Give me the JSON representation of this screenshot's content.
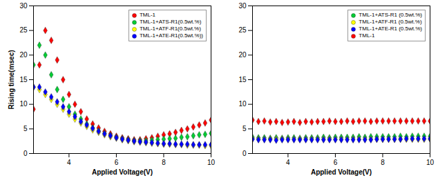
{
  "chart_data": [
    {
      "type": "scatter",
      "x_label": "Applied Voltage(V)",
      "y_label": "Rising time(msec)",
      "x": [
        2.5,
        2.75,
        3.0,
        3.25,
        3.5,
        3.75,
        4.0,
        4.25,
        4.5,
        4.75,
        5.0,
        5.25,
        5.5,
        5.75,
        6.0,
        6.25,
        6.5,
        6.75,
        7.0,
        7.25,
        7.5,
        7.75,
        8.0,
        8.25,
        8.5,
        8.75,
        9.0,
        9.25,
        9.5,
        9.75,
        10.0
      ],
      "xlim": [
        2.5,
        10
      ],
      "xticks": [
        4,
        6,
        8,
        10
      ],
      "ylim": [
        0,
        30
      ],
      "yticks": [
        0,
        5,
        10,
        15,
        20,
        25,
        30
      ],
      "grid": false,
      "legend": "top-right",
      "marker": "diamond",
      "series": [
        {
          "name": "TML-1",
          "color": "#ff0000",
          "values": [
            9,
            18,
            25,
            23,
            19,
            15,
            12,
            10,
            8.5,
            7,
            6,
            5.2,
            4.5,
            4,
            3.5,
            3.2,
            3,
            2.8,
            2.8,
            3,
            3.2,
            3.5,
            3.8,
            4,
            4.3,
            4.7,
            5,
            5.4,
            5.8,
            6.2,
            6.8
          ]
        },
        {
          "name": "TML-1+ATS-R1(0.5wt.%)",
          "color": "#00cc33",
          "values": [
            18,
            22,
            20,
            16,
            13,
            11,
            9.5,
            8,
            7,
            6,
            5.2,
            4.6,
            4.1,
            3.7,
            3.3,
            3,
            2.8,
            2.6,
            2.6,
            2.6,
            2.7,
            2.8,
            2.9,
            3,
            3.1,
            3.3,
            3.4,
            3.6,
            3.8,
            3.9,
            4.1
          ]
        },
        {
          "name": "TML-1+ATF-R1(0.5wt.%)",
          "color": "#ffff00",
          "values": [
            13.5,
            13,
            12,
            11,
            10,
            9,
            8,
            7,
            6.2,
            5.5,
            4.8,
            4.3,
            3.8,
            3.4,
            3.1,
            2.8,
            2.6,
            2.4,
            2.3,
            2.2,
            2.1,
            2,
            1.9,
            1.9,
            1.8,
            1.8,
            1.7,
            1.7,
            1.7,
            1.6,
            1.6
          ]
        },
        {
          "name": "TML-1+ATE-R1(0.5wt.%))",
          "color": "#0000ff",
          "values": [
            13.5,
            13.5,
            12.5,
            11.5,
            10.5,
            9.5,
            8.5,
            7.5,
            6.5,
            5.8,
            5.1,
            4.5,
            4,
            3.6,
            3.2,
            2.9,
            2.7,
            2.5,
            2.4,
            2.3,
            2.2,
            2.1,
            2,
            2,
            1.9,
            1.9,
            1.9,
            1.8,
            1.8,
            1.8,
            1.8
          ]
        }
      ]
    },
    {
      "type": "scatter",
      "x_label": "Applied Voltage(V)",
      "x": [
        2.5,
        2.75,
        3.0,
        3.25,
        3.5,
        3.75,
        4.0,
        4.25,
        4.5,
        4.75,
        5.0,
        5.25,
        5.5,
        5.75,
        6.0,
        6.25,
        6.5,
        6.75,
        7.0,
        7.25,
        7.5,
        7.75,
        8.0,
        8.25,
        8.5,
        8.75,
        9.0,
        9.25,
        9.5,
        9.75,
        10.0
      ],
      "xlim": [
        2.5,
        10
      ],
      "xticks": [
        4,
        6,
        8,
        10
      ],
      "ylim": [
        0,
        30
      ],
      "yticks": [
        0,
        5,
        10,
        15,
        20,
        25,
        30
      ],
      "grid": false,
      "legend": "top-right",
      "marker": "diamond",
      "series": [
        {
          "name": "TML-1+ATS-R1 (0.5wt.%)",
          "color": "#00cc33",
          "values": [
            3.3,
            3.2,
            3.2,
            3.1,
            3.2,
            3.1,
            3.2,
            3.2,
            3.1,
            3.2,
            3.2,
            3.2,
            3.3,
            3.2,
            3.3,
            3.3,
            3.3,
            3.3,
            3.4,
            3.3,
            3.4,
            3.4,
            3.4,
            3.4,
            3.4,
            3.5,
            3.4,
            3.5,
            3.5,
            3.5,
            3.5
          ]
        },
        {
          "name": "TML-1+ATF-R1 (0.5wt.%)",
          "color": "#ffff00",
          "values": [
            3,
            2.9,
            2.9,
            2.9,
            2.9,
            2.9,
            2.9,
            2.9,
            2.9,
            2.9,
            2.9,
            2.9,
            2.9,
            2.9,
            2.9,
            2.9,
            2.9,
            2.9,
            2.9,
            2.9,
            2.9,
            2.9,
            2.9,
            2.9,
            2.9,
            2.9,
            2.9,
            2.9,
            2.9,
            2.9,
            2.9
          ]
        },
        {
          "name": "TML-1+ATE-R1 (0.5wt.%)",
          "color": "#0000ff",
          "values": [
            2.9,
            2.8,
            2.8,
            2.8,
            2.7,
            2.8,
            2.8,
            2.8,
            2.8,
            2.8,
            2.8,
            2.8,
            2.8,
            2.8,
            2.8,
            2.8,
            2.8,
            2.8,
            2.8,
            2.8,
            2.8,
            2.9,
            2.9,
            2.9,
            2.9,
            2.9,
            3,
            3,
            3,
            3,
            3
          ]
        },
        {
          "name": "TML-1",
          "color": "#ff0000",
          "values": [
            6.8,
            6.5,
            6.6,
            6.4,
            6.5,
            6.3,
            6.4,
            6.5,
            6.3,
            6.5,
            6.4,
            6.5,
            6.5,
            6.6,
            6.5,
            6.5,
            6.6,
            6.5,
            6.6,
            6.6,
            6.5,
            6.6,
            6.6,
            6.6,
            6.6,
            6.6,
            6.6,
            6.6,
            6.6,
            6.6,
            6.6
          ]
        }
      ]
    }
  ]
}
